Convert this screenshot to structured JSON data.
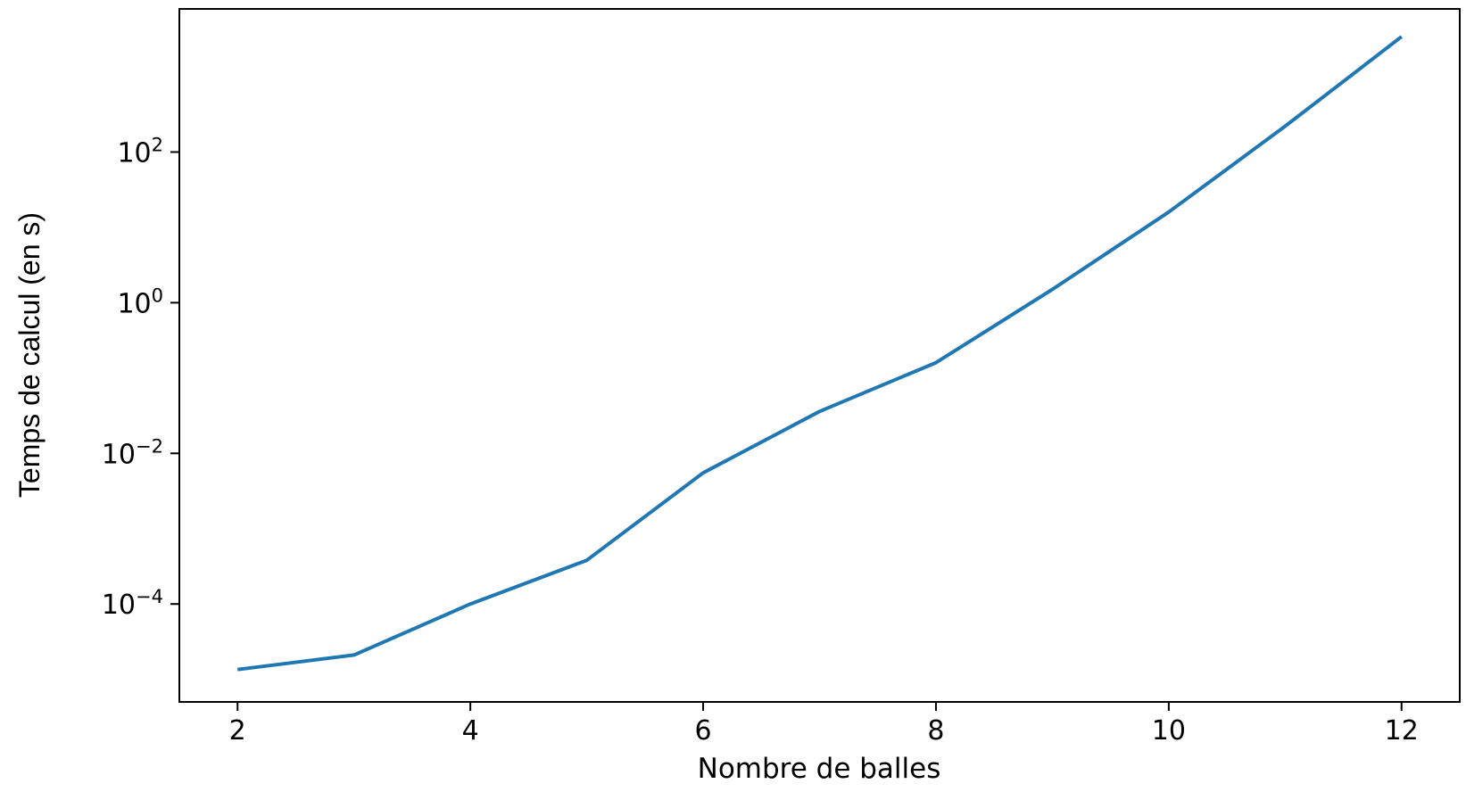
{
  "chart_data": {
    "type": "line",
    "title": "",
    "xlabel": "Nombre de balles",
    "ylabel": "Temps de calcul (en s)",
    "yscale": "log",
    "grid": false,
    "legend": "none",
    "xlim": [
      1.5,
      12.5
    ],
    "ylim_log10": [
      -5.3,
      3.9
    ],
    "x_ticks": [
      2,
      4,
      6,
      8,
      10,
      12
    ],
    "y_ticks": [
      {
        "exp": -4,
        "base": "10",
        "sup": "−4"
      },
      {
        "exp": -2,
        "base": "10",
        "sup": "−2"
      },
      {
        "exp": 0,
        "base": "10",
        "sup": "0"
      },
      {
        "exp": 2,
        "base": "10",
        "sup": "2"
      }
    ],
    "series": [
      {
        "color": "#1f77b4",
        "x": [
          2,
          3,
          4,
          5,
          6,
          7,
          8,
          9,
          10,
          11,
          12
        ],
        "y": [
          1.35e-05,
          2.1e-05,
          0.0001,
          0.00038,
          0.0055,
          0.036,
          0.16,
          1.5,
          16,
          220,
          3400
        ]
      }
    ]
  }
}
